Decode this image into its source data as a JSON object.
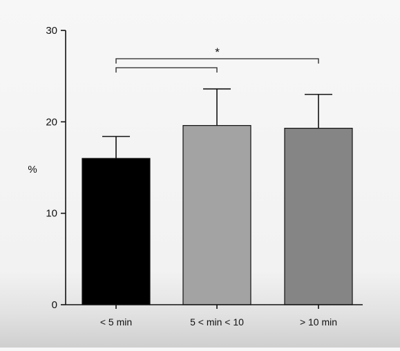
{
  "chart_data": {
    "type": "bar",
    "categories": [
      "< 5 min",
      "5 < min < 10",
      "> 10 min"
    ],
    "values": [
      16.0,
      19.6,
      19.3
    ],
    "errors": [
      2.4,
      4.0,
      3.7
    ],
    "bar_colors": [
      "#000000",
      "#a3a3a3",
      "#858585"
    ],
    "ylabel": "%",
    "ylim": [
      0,
      30
    ],
    "yticks": [
      0,
      10,
      20,
      30
    ],
    "grid": false,
    "significance": [
      {
        "from": 0,
        "to": 1,
        "label": ""
      },
      {
        "from": 0,
        "to": 2,
        "label": "*"
      }
    ]
  }
}
